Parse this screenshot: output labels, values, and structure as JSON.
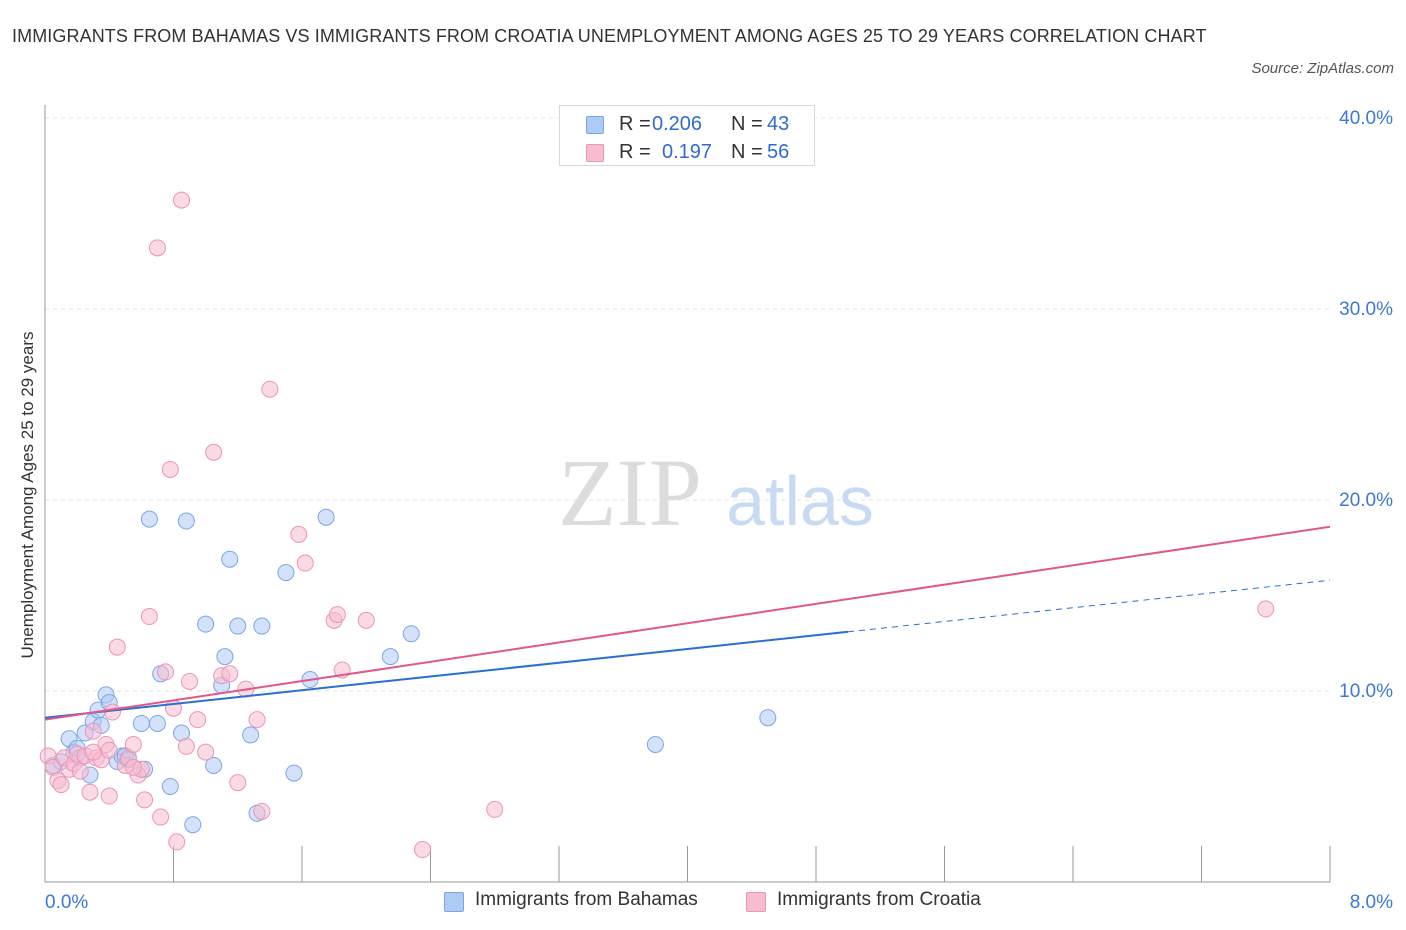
{
  "title": "IMMIGRANTS FROM BAHAMAS VS IMMIGRANTS FROM CROATIA UNEMPLOYMENT AMONG AGES 25 TO 29 YEARS CORRELATION CHART",
  "source": "Source: ZipAtlas.com",
  "watermark": {
    "zip": "ZIP",
    "atlas": "atlas"
  },
  "legend": {
    "bahamas": {
      "r_label": "R =",
      "r_value": "0.206",
      "n_label": "N =",
      "n_value": "43"
    },
    "croatia": {
      "r_label": "R =",
      "r_value": "0.197",
      "n_label": "N =",
      "n_value": "56"
    }
  },
  "bottom_legend": {
    "bahamas": "Immigrants from Bahamas",
    "croatia": "Immigrants from Croatia"
  },
  "colors": {
    "bahamas_fill": "#aecbf5",
    "bahamas_stroke": "#7aa6e8",
    "bahamas_line": "#2b6fd2",
    "croatia_fill": "#f6bcd0",
    "croatia_stroke": "#ee94b4",
    "croatia_line": "#e0588a",
    "axis_text": "#3d78d8",
    "grid": "#e3e3e3"
  },
  "chart_data": {
    "type": "scatter",
    "title": "IMMIGRANTS FROM BAHAMAS VS IMMIGRANTS FROM CROATIA UNEMPLOYMENT AMONG AGES 25 TO 29 YEARS CORRELATION CHART",
    "xlabel": "",
    "ylabel": "Unemployment Among Ages 25 to 29 years",
    "xlim": [
      0,
      8
    ],
    "ylim": [
      0,
      40
    ],
    "x_tick_labels": [
      "0.0%",
      "8.0%"
    ],
    "y_ticks": [
      10,
      20,
      30,
      40
    ],
    "y_tick_labels": [
      "10.0%",
      "20.0%",
      "30.0%",
      "40.0%"
    ],
    "grid": true,
    "series": [
      {
        "name": "Immigrants from Bahamas",
        "color": "#aecbf5",
        "points": [
          [
            0.05,
            6.1
          ],
          [
            0.1,
            6.3
          ],
          [
            0.15,
            7.5
          ],
          [
            0.18,
            6.8
          ],
          [
            0.2,
            7.0
          ],
          [
            0.22,
            6.5
          ],
          [
            0.25,
            7.8
          ],
          [
            0.28,
            5.6
          ],
          [
            0.3,
            8.4
          ],
          [
            0.33,
            9.0
          ],
          [
            0.35,
            8.2
          ],
          [
            0.38,
            9.8
          ],
          [
            0.4,
            9.4
          ],
          [
            0.45,
            6.3
          ],
          [
            0.48,
            6.6
          ],
          [
            0.5,
            6.6
          ],
          [
            0.52,
            6.4
          ],
          [
            0.6,
            8.3
          ],
          [
            0.62,
            5.9
          ],
          [
            0.65,
            19.0
          ],
          [
            0.7,
            8.3
          ],
          [
            0.72,
            10.9
          ],
          [
            0.78,
            5.0
          ],
          [
            0.85,
            7.8
          ],
          [
            0.88,
            18.9
          ],
          [
            0.92,
            3.0
          ],
          [
            1.0,
            13.5
          ],
          [
            1.05,
            6.1
          ],
          [
            1.1,
            10.3
          ],
          [
            1.12,
            11.8
          ],
          [
            1.15,
            16.9
          ],
          [
            1.2,
            13.4
          ],
          [
            1.28,
            7.7
          ],
          [
            1.32,
            3.6
          ],
          [
            1.35,
            13.4
          ],
          [
            1.5,
            16.2
          ],
          [
            1.55,
            5.7
          ],
          [
            1.65,
            10.6
          ],
          [
            1.75,
            19.1
          ],
          [
            2.15,
            11.8
          ],
          [
            2.28,
            13.0
          ],
          [
            3.8,
            7.2
          ],
          [
            4.5,
            8.6
          ]
        ],
        "trend": {
          "x": [
            0,
            5.0
          ],
          "y": [
            8.6,
            13.1
          ],
          "dashed_to": [
            8.0,
            15.8
          ]
        }
      },
      {
        "name": "Immigrants from Croatia",
        "color": "#f6bcd0",
        "points": [
          [
            0.02,
            6.6
          ],
          [
            0.05,
            6.0
          ],
          [
            0.08,
            5.3
          ],
          [
            0.1,
            5.1
          ],
          [
            0.12,
            6.5
          ],
          [
            0.15,
            5.9
          ],
          [
            0.18,
            6.2
          ],
          [
            0.2,
            6.7
          ],
          [
            0.25,
            6.6
          ],
          [
            0.28,
            4.7
          ],
          [
            0.3,
            7.9
          ],
          [
            0.32,
            6.5
          ],
          [
            0.35,
            6.4
          ],
          [
            0.38,
            7.2
          ],
          [
            0.4,
            4.5
          ],
          [
            0.42,
            8.9
          ],
          [
            0.45,
            12.3
          ],
          [
            0.5,
            6.1
          ],
          [
            0.52,
            6.5
          ],
          [
            0.55,
            7.2
          ],
          [
            0.58,
            5.6
          ],
          [
            0.6,
            5.9
          ],
          [
            0.62,
            4.3
          ],
          [
            0.65,
            13.9
          ],
          [
            0.7,
            33.2
          ],
          [
            0.72,
            3.4
          ],
          [
            0.75,
            11.0
          ],
          [
            0.78,
            21.6
          ],
          [
            0.8,
            9.1
          ],
          [
            0.82,
            2.1
          ],
          [
            0.85,
            35.7
          ],
          [
            0.88,
            7.1
          ],
          [
            0.9,
            10.5
          ],
          [
            0.95,
            8.5
          ],
          [
            1.05,
            22.5
          ],
          [
            1.1,
            10.8
          ],
          [
            1.15,
            10.9
          ],
          [
            1.2,
            5.2
          ],
          [
            1.25,
            10.1
          ],
          [
            1.32,
            8.5
          ],
          [
            1.35,
            3.7
          ],
          [
            1.4,
            25.8
          ],
          [
            1.58,
            18.2
          ],
          [
            1.62,
            16.7
          ],
          [
            1.8,
            13.7
          ],
          [
            1.82,
            14.0
          ],
          [
            1.85,
            11.1
          ],
          [
            2.0,
            13.7
          ],
          [
            2.35,
            1.7
          ],
          [
            2.8,
            3.8
          ],
          [
            7.6,
            14.3
          ],
          [
            0.4,
            6.9
          ],
          [
            0.55,
            6.0
          ],
          [
            0.3,
            6.8
          ],
          [
            0.22,
            5.8
          ],
          [
            1.0,
            6.8
          ]
        ],
        "trend": {
          "x": [
            0,
            8.0
          ],
          "y": [
            8.5,
            18.6
          ]
        }
      }
    ]
  }
}
